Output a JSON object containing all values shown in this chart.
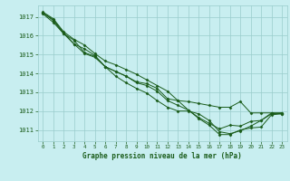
{
  "title": "Graphe pression niveau de la mer (hPa)",
  "bg_color": "#c8eef0",
  "grid_color": "#99cccc",
  "line_color": "#1a5c1a",
  "marker_color": "#1a5c1a",
  "xlim": [
    -0.5,
    23.5
  ],
  "ylim": [
    1010.4,
    1017.6
  ],
  "xticks": [
    0,
    1,
    2,
    3,
    4,
    5,
    6,
    7,
    8,
    9,
    10,
    11,
    12,
    13,
    14,
    15,
    16,
    17,
    18,
    19,
    20,
    21,
    22,
    23
  ],
  "yticks": [
    1011,
    1012,
    1013,
    1014,
    1015,
    1016,
    1017
  ],
  "series": [
    [
      1017.2,
      1016.8,
      1016.1,
      1015.55,
      1015.05,
      1014.85,
      1014.35,
      1014.1,
      1013.85,
      1013.5,
      1013.35,
      1013.05,
      1012.55,
      1012.3,
      1012.05,
      1011.6,
      1011.25,
      1010.75,
      1010.75,
      1011.0,
      1011.1,
      1011.15,
      1011.8,
      1011.85
    ],
    [
      1017.15,
      1016.7,
      1016.1,
      1015.75,
      1015.1,
      1014.9,
      1014.35,
      1013.85,
      1013.5,
      1013.2,
      1012.95,
      1012.55,
      1012.2,
      1012.0,
      1012.0,
      1011.85,
      1011.5,
      1010.9,
      1010.8,
      1010.95,
      1011.2,
      1011.5,
      1011.85,
      1011.9
    ],
    [
      1017.2,
      1016.85,
      1016.15,
      1015.55,
      1015.3,
      1014.95,
      1014.35,
      1014.1,
      1013.85,
      1013.55,
      1013.45,
      1013.2,
      1012.65,
      1012.55,
      1012.5,
      1012.4,
      1012.3,
      1012.2,
      1012.2,
      1012.5,
      1011.9,
      1011.9,
      1011.9,
      1011.9
    ],
    [
      1017.25,
      1016.9,
      1016.2,
      1015.8,
      1015.5,
      1015.05,
      1014.65,
      1014.45,
      1014.2,
      1013.95,
      1013.65,
      1013.35,
      1013.05,
      1012.55,
      1012.05,
      1011.65,
      1011.35,
      1011.05,
      1011.25,
      1011.2,
      1011.45,
      1011.5,
      1011.9,
      1011.85
    ]
  ]
}
